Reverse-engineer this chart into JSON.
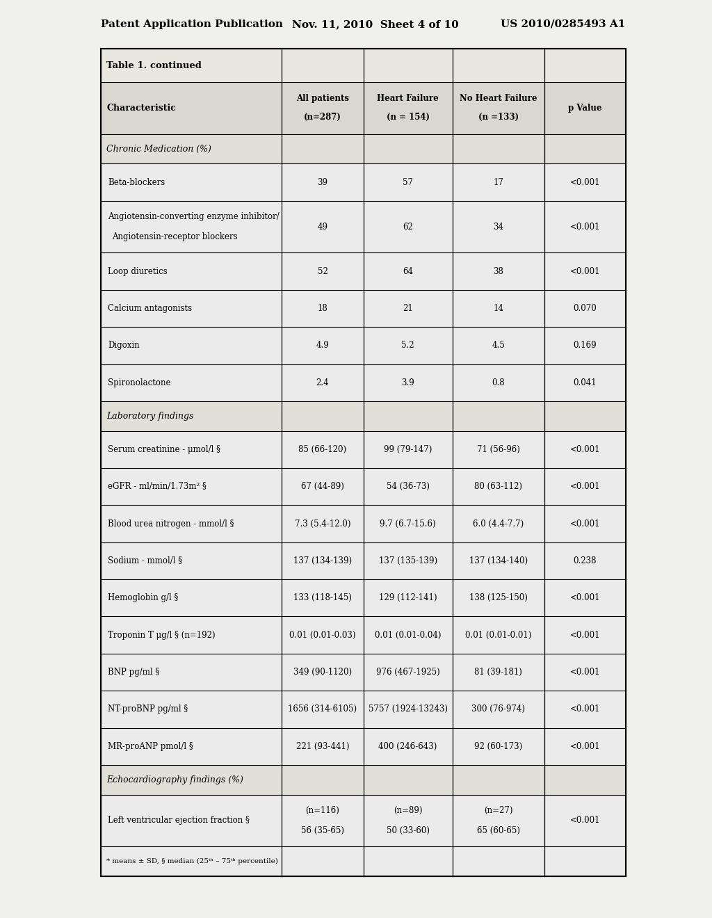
{
  "page_header": {
    "left": "Patent Application Publication",
    "center": "Nov. 11, 2010  Sheet 4 of 10",
    "right": "US 2010/0285493 A1"
  },
  "table_title": "Table 1. continued",
  "col_headers": [
    "Characteristic",
    "All patients\n(n=287)",
    "Heart Failure\n(n = 154)",
    "No Heart Failure\n(n =133)",
    "p Value"
  ],
  "sections": [
    {
      "section_header": "Chronic Medication (%)",
      "rows": [
        [
          "Beta-blockers",
          "39",
          "57",
          "17",
          "<0.001"
        ],
        [
          "Angiotensin-converting enzyme inhibitor/\nAngiotensin-receptor blockers",
          "49",
          "62",
          "34",
          "<0.001"
        ],
        [
          "Loop diuretics",
          "52",
          "64",
          "38",
          "<0.001"
        ],
        [
          "Calcium antagonists",
          "18",
          "21",
          "14",
          "0.070"
        ],
        [
          "Digoxin",
          "4.9",
          "5.2",
          "4.5",
          "0.169"
        ],
        [
          "Spironolactone",
          "2.4",
          "3.9",
          "0.8",
          "0.041"
        ]
      ]
    },
    {
      "section_header": "Laboratory findings",
      "rows": [
        [
          "Serum creatinine - μmol/l §",
          "85 (66-120)",
          "99 (79-147)",
          "71 (56-96)",
          "<0.001"
        ],
        [
          "eGFR - ml/min/1.73m² §",
          "67 (44-89)",
          "54 (36-73)",
          "80 (63-112)",
          "<0.001"
        ],
        [
          "Blood urea nitrogen - mmol/l §",
          "7.3 (5.4-12.0)",
          "9.7 (6.7-15.6)",
          "6.0 (4.4-7.7)",
          "<0.001"
        ],
        [
          "Sodium - mmol/l §",
          "137 (134-139)",
          "137 (135-139)",
          "137 (134-140)",
          "0.238"
        ],
        [
          "Hemoglobin g/l §",
          "133 (118-145)",
          "129 (112-141)",
          "138 (125-150)",
          "<0.001"
        ],
        [
          "Troponin T μg/l § (n=192)",
          "0.01 (0.01-0.03)",
          "0.01 (0.01-0.04)",
          "0.01 (0.01-0.01)",
          "<0.001"
        ],
        [
          "BNP pg/ml §",
          "349 (90-1120)",
          "976 (467-1925)",
          "81 (39-181)",
          "<0.001"
        ],
        [
          "NT-proBNP pg/ml §",
          "1656 (314-6105)",
          "5757 (1924-13243)",
          "300 (76-974)",
          "<0.001"
        ],
        [
          "MR-proANP pmol/l §",
          "221 (93-441)",
          "400 (246-643)",
          "92 (60-173)",
          "<0.001"
        ]
      ]
    },
    {
      "section_header": "Echocardiography findings (%)",
      "rows": [
        [
          "Left ventricular ejection fraction §",
          "(n=116)\n56 (35-65)",
          "(n=89)\n50 (33-60)",
          "(n=27)\n65 (60-65)",
          "<0.001"
        ]
      ]
    }
  ],
  "footnote": "* means ± SD, § median (25ᵗʰ – 75ᵗʰ percentile)",
  "bg_color": "#f0f0ec",
  "table_bg": "#e8e8e0",
  "row_alt": "#e4e4dc"
}
